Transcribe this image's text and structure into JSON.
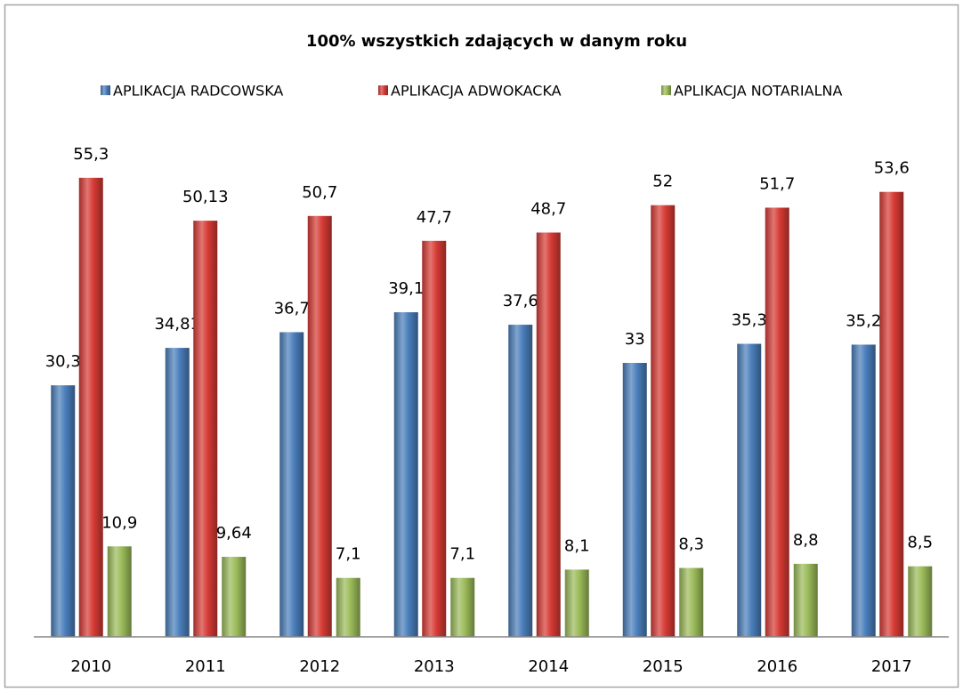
{
  "chart_data": {
    "type": "bar",
    "title": "100%  wszystkich zdających w danym roku",
    "categories": [
      "2010",
      "2011",
      "2012",
      "2013",
      "2014",
      "2015",
      "2016",
      "2017"
    ],
    "series": [
      {
        "name": "APLIKACJA RADCOWSKA",
        "color": "#4a7ebb",
        "values": [
          30.3,
          34.81,
          36.7,
          39.1,
          37.6,
          33,
          35.3,
          35.2
        ],
        "value_labels": [
          "30,3",
          "34,81",
          "36,7",
          "39,1",
          "37,6",
          "33",
          "35,3",
          "35,2"
        ]
      },
      {
        "name": "APLIKACJA ADWOKACKA",
        "color": "#d73b35",
        "values": [
          55.3,
          50.13,
          50.7,
          47.7,
          48.7,
          52,
          51.7,
          53.6
        ],
        "value_labels": [
          "55,3",
          "50,13",
          "50,7",
          "47,7",
          "48,7",
          "52",
          "51,7",
          "53,6"
        ]
      },
      {
        "name": "APLIKACJA NOTARIALNA",
        "color": "#9bbb59",
        "values": [
          10.9,
          9.64,
          7.1,
          7.1,
          8.1,
          8.3,
          8.8,
          8.5
        ],
        "value_labels": [
          "10,9",
          "9,64",
          "7,1",
          "7,1",
          "8,1",
          "8,3",
          "8,8",
          "8,5"
        ]
      }
    ],
    "ylim": [
      0,
      60
    ],
    "legend": "top"
  }
}
